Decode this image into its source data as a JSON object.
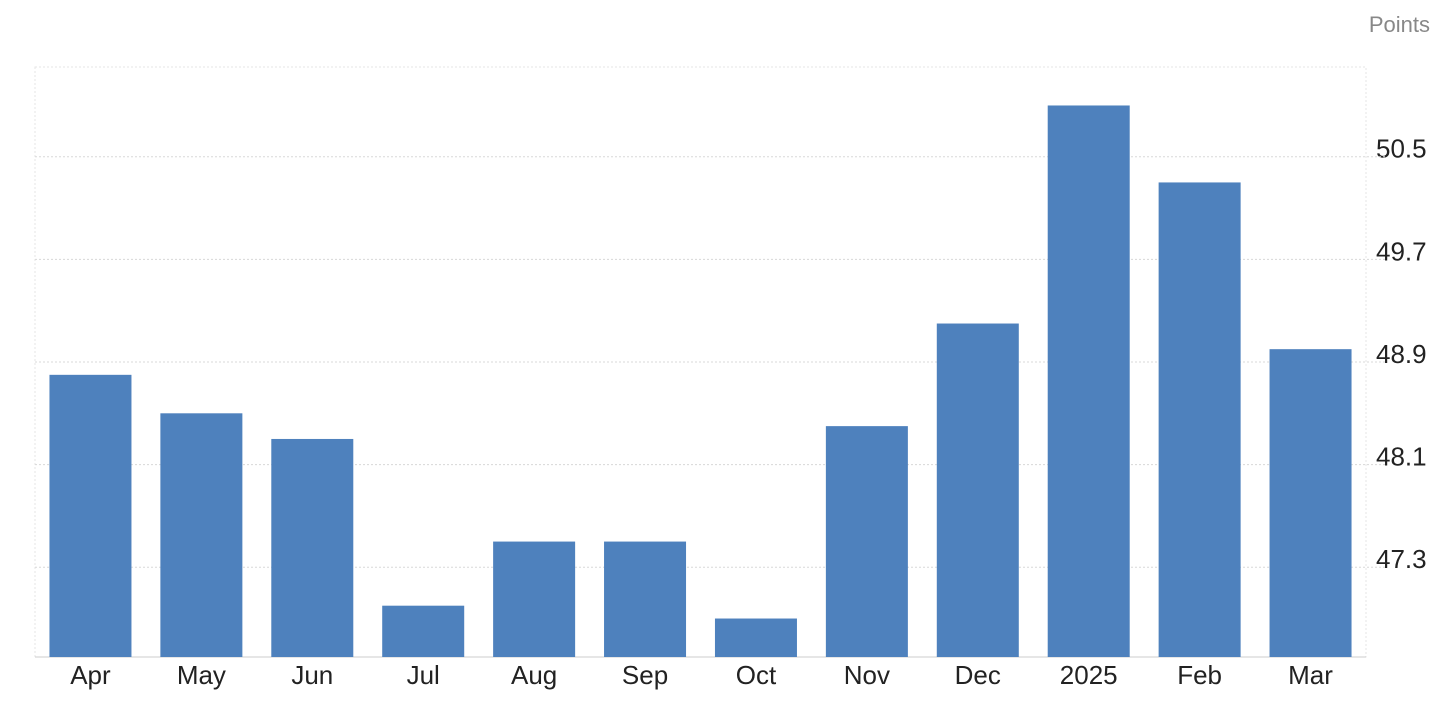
{
  "chart_data": {
    "type": "bar",
    "unit_label": "Points",
    "categories": [
      "Apr",
      "May",
      "Jun",
      "Jul",
      "Aug",
      "Sep",
      "Oct",
      "Nov",
      "Dec",
      "2025",
      "Feb",
      "Mar"
    ],
    "values": [
      48.8,
      48.5,
      48.3,
      47.0,
      47.5,
      47.5,
      46.9,
      48.4,
      49.2,
      50.9,
      50.3,
      49.0
    ],
    "color": "#4e81bd",
    "ylim": [
      46.6,
      51.2
    ],
    "yticks": [
      47.3,
      48.1,
      48.9,
      49.7,
      50.5
    ],
    "grid": true
  }
}
